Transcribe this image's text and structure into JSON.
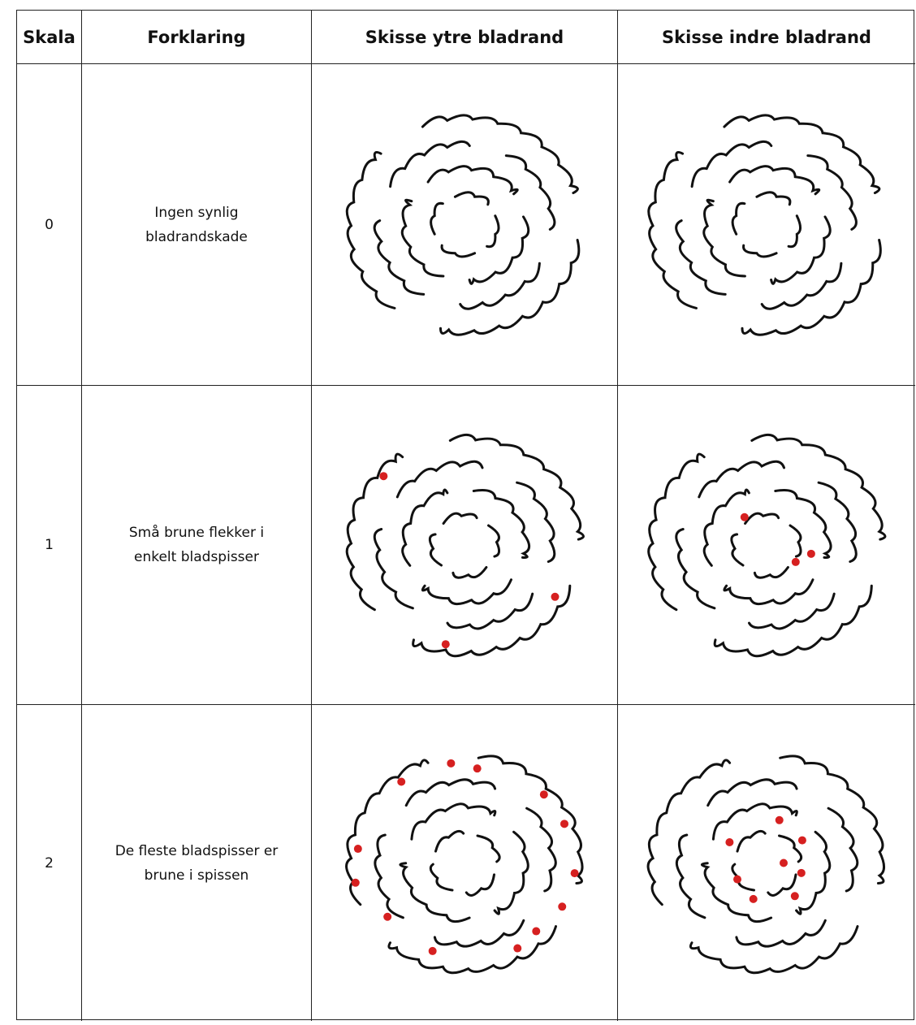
{
  "table": {
    "headers": [
      "Skala",
      "Forklaring",
      "Skisse ytre bladrand",
      "Skisse indre bladrand"
    ],
    "rows": [
      {
        "scale": 0,
        "description": [
          "Ingen synlig",
          "bladrandskade"
        ]
      },
      {
        "scale": 1,
        "description": [
          "Små brune flekker i",
          "enkelt bladspisser"
        ]
      },
      {
        "scale": 2,
        "description": [
          "De fleste bladspisser er",
          "brune i spissen"
        ]
      }
    ]
  }
}
